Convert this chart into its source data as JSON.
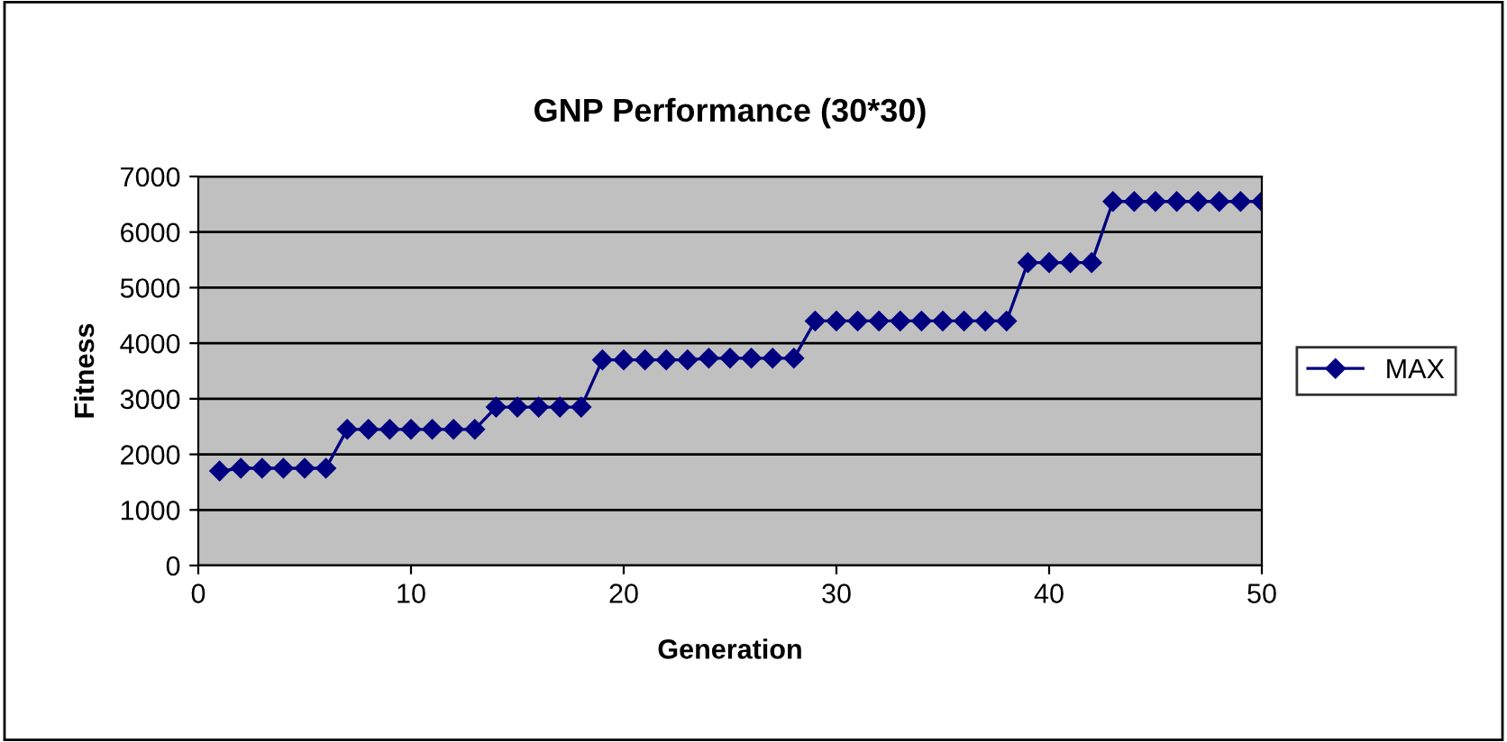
{
  "chart_data": {
    "type": "line",
    "title": "GNP Performance (30*30)",
    "xlabel": "Generation",
    "ylabel": "Fitness",
    "x": [
      1,
      2,
      3,
      4,
      5,
      6,
      7,
      8,
      9,
      10,
      11,
      12,
      13,
      14,
      15,
      16,
      17,
      18,
      19,
      20,
      21,
      22,
      23,
      24,
      25,
      26,
      27,
      28,
      29,
      30,
      31,
      32,
      33,
      34,
      35,
      36,
      37,
      38,
      39,
      40,
      41,
      42,
      43,
      44,
      45,
      46,
      47,
      48,
      49,
      50
    ],
    "series": [
      {
        "name": "MAX",
        "color": "#000080",
        "values": [
          1700,
          1750,
          1750,
          1750,
          1750,
          1750,
          2450,
          2450,
          2450,
          2450,
          2450,
          2450,
          2450,
          2850,
          2850,
          2850,
          2850,
          2850,
          3700,
          3700,
          3700,
          3700,
          3700,
          3730,
          3730,
          3730,
          3730,
          3730,
          4400,
          4400,
          4400,
          4400,
          4400,
          4400,
          4400,
          4400,
          4400,
          4400,
          5450,
          5450,
          5450,
          5450,
          6550,
          6550,
          6550,
          6550,
          6550,
          6550,
          6550,
          6550
        ]
      }
    ],
    "xlim": [
      0,
      50
    ],
    "xticks": [
      0,
      10,
      20,
      30,
      40,
      50
    ],
    "ylim": [
      0,
      7000
    ],
    "yticks": [
      0,
      1000,
      2000,
      3000,
      4000,
      5000,
      6000,
      7000
    ],
    "grid": "y",
    "legend": "right",
    "marker": "diamond",
    "line_style": "solid"
  }
}
